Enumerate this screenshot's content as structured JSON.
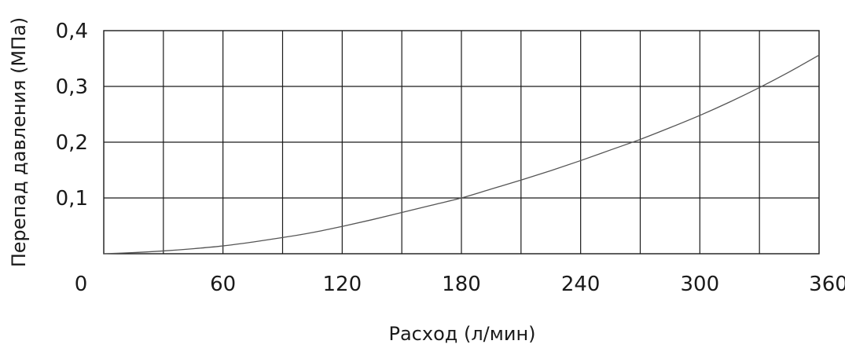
{
  "chart_data": {
    "type": "line",
    "title": "",
    "xlabel": "Расход (л/мин)",
    "ylabel": "Перепад давления (МПа)",
    "xlim": [
      0,
      360
    ],
    "ylim": [
      0,
      0.4
    ],
    "x_ticks": [
      0,
      60,
      120,
      180,
      240,
      300,
      360
    ],
    "x_tick_labels": [
      "0",
      "60",
      "120",
      "180",
      "240",
      "300",
      "360"
    ],
    "y_ticks": [
      0.1,
      0.2,
      0.3,
      0.4
    ],
    "y_tick_labels": [
      "0,1",
      "0,2",
      "0,3",
      "0,4"
    ],
    "grid": true,
    "x_grid_step": 30,
    "y_grid_step": 0.1,
    "series": [
      {
        "color": "#555555",
        "x": [
          0,
          15,
          30,
          45,
          60,
          75,
          90,
          105,
          120,
          135,
          150,
          165,
          180,
          195,
          210,
          225,
          240,
          255,
          270,
          285,
          300,
          315,
          330,
          345,
          360
        ],
        "y": [
          0,
          0.002,
          0.005,
          0.009,
          0.014,
          0.021,
          0.029,
          0.038,
          0.049,
          0.061,
          0.074,
          0.087,
          0.1,
          0.116,
          0.132,
          0.149,
          0.167,
          0.186,
          0.205,
          0.226,
          0.248,
          0.272,
          0.298,
          0.326,
          0.356
        ]
      }
    ]
  }
}
